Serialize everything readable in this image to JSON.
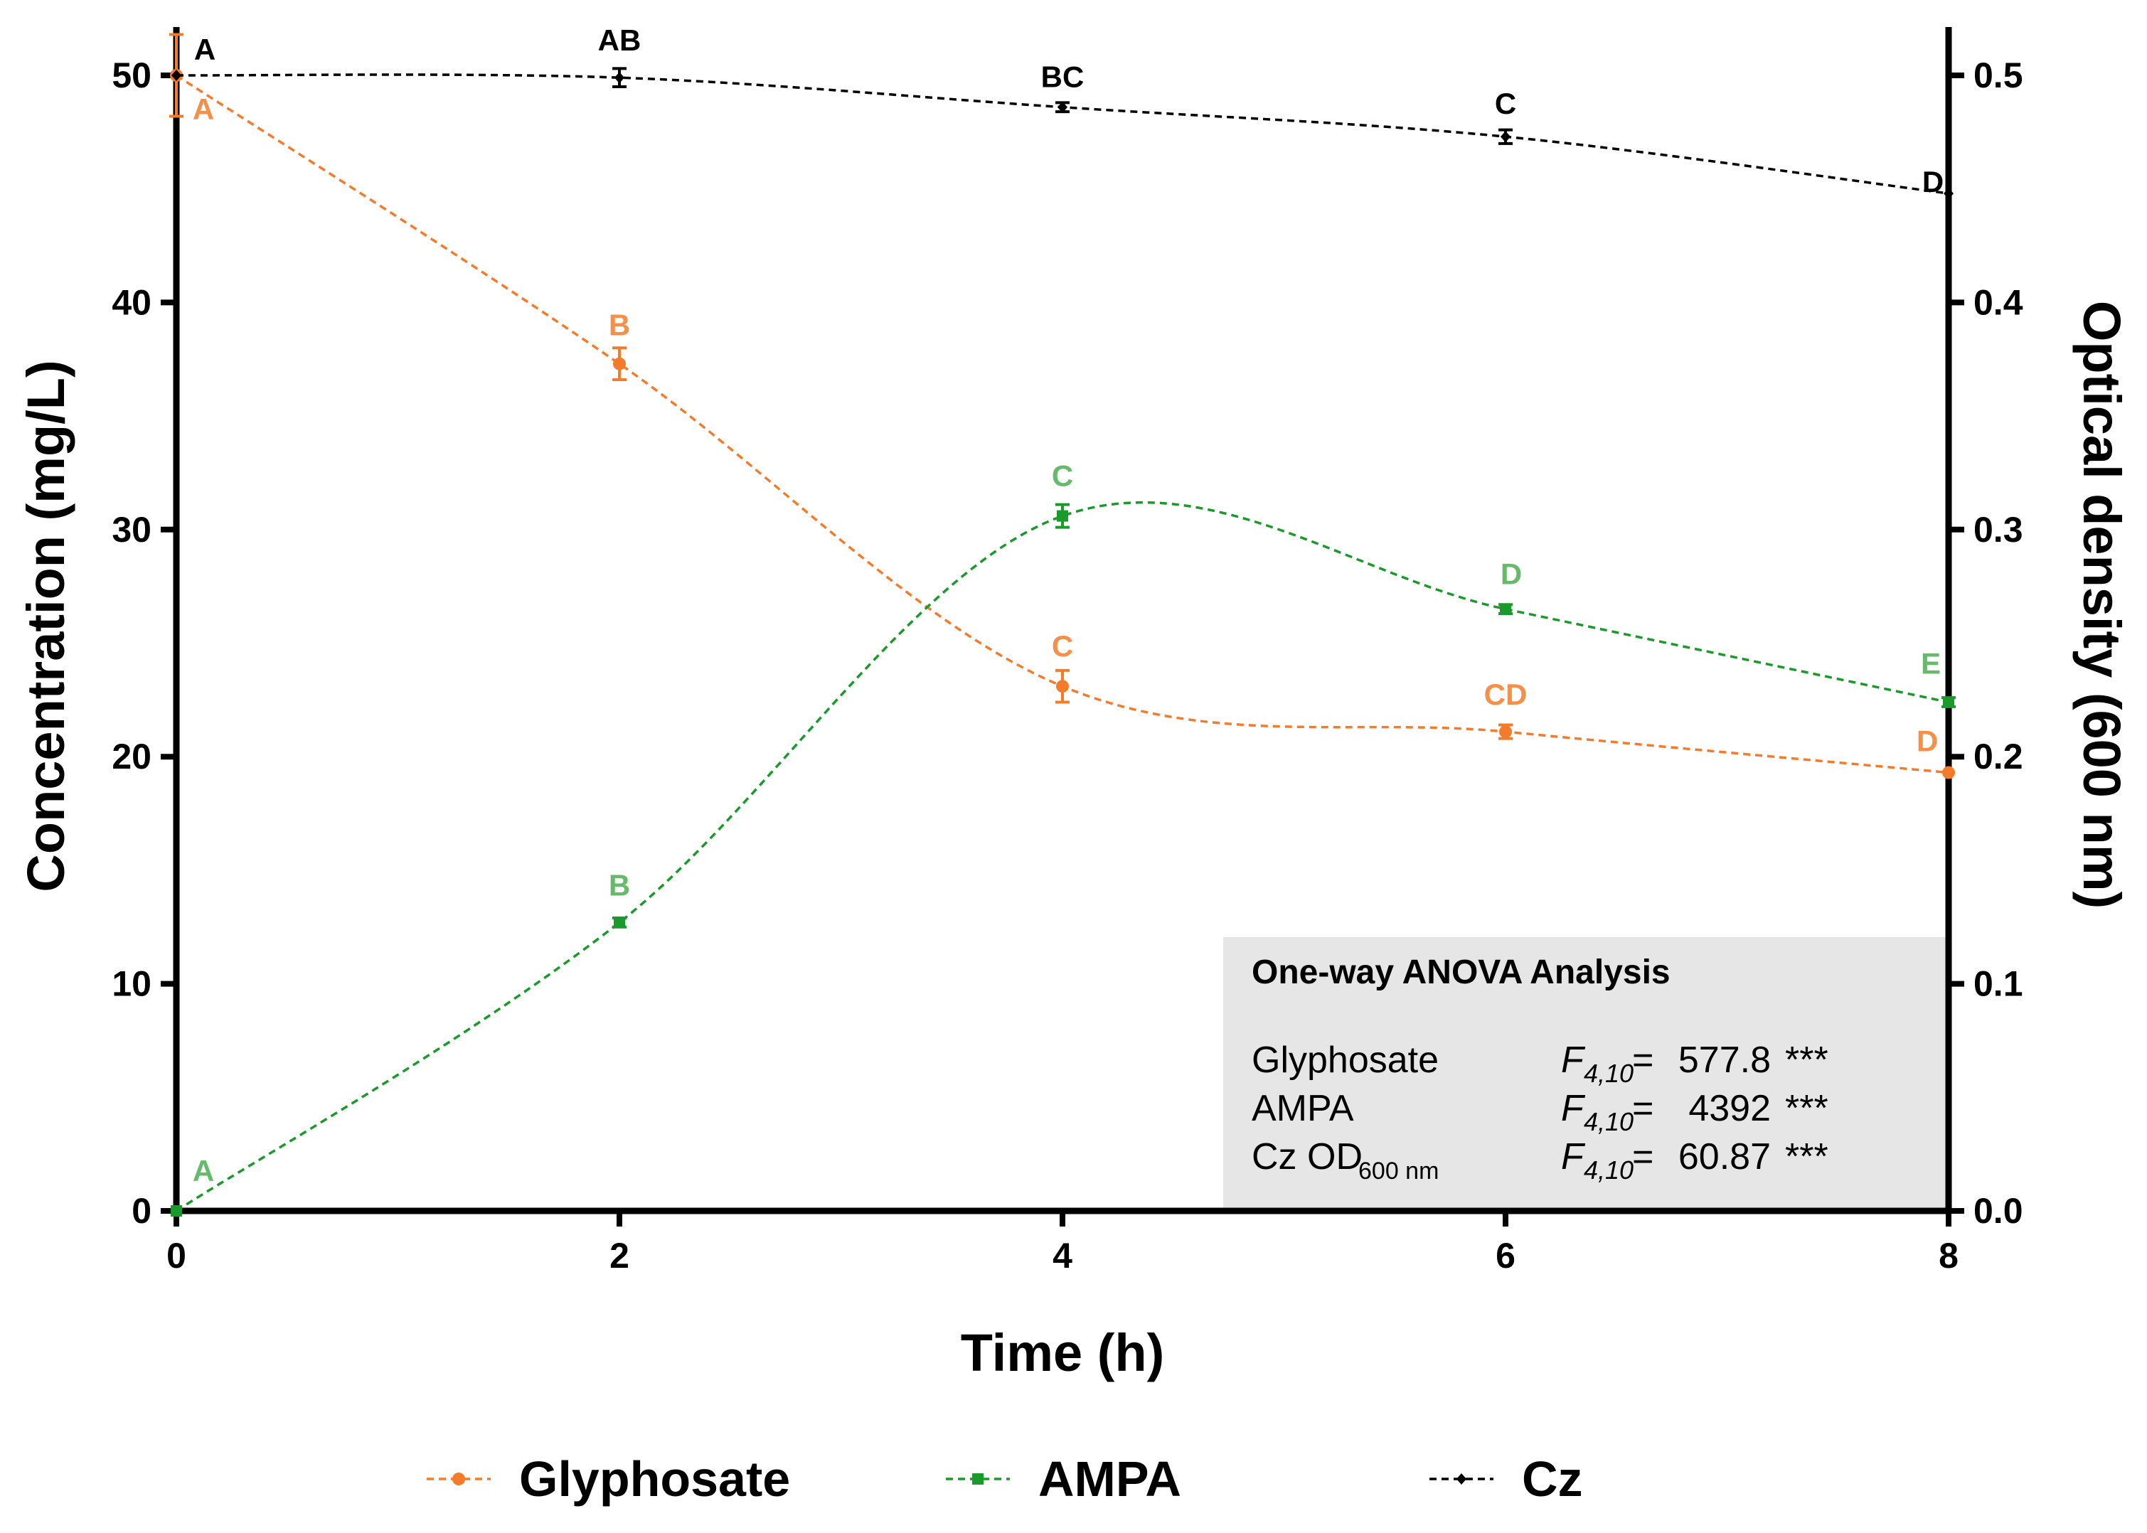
{
  "chart_data": {
    "type": "line",
    "x": [
      0,
      2,
      4,
      6,
      8
    ],
    "xlabel": "Time (h)",
    "ylabel_left": "Concentration (mg/L)",
    "ylabel_right": "Optical density (600 nm)",
    "xlim": [
      0,
      8
    ],
    "ylim_left": [
      0,
      52
    ],
    "ylim_right": [
      0,
      0.52
    ],
    "x_ticks": [
      "0",
      "2",
      "4",
      "6",
      "8"
    ],
    "y_ticks_left": [
      "0",
      "10",
      "20",
      "30",
      "40",
      "50"
    ],
    "y_ticks_right": [
      "0.0",
      "0.1",
      "0.2",
      "0.3",
      "0.4",
      "0.5"
    ],
    "series": [
      {
        "name": "Glyphosate",
        "axis": "left",
        "color": "#F47B2A",
        "label_color": "#F4904A",
        "marker": "circle",
        "values": [
          50.0,
          37.3,
          23.1,
          21.1,
          19.3
        ],
        "errors": [
          1.8,
          0.7,
          0.7,
          0.3,
          0.0
        ],
        "letters": [
          "A",
          "B",
          "C",
          "CD",
          "D"
        ]
      },
      {
        "name": "AMPA",
        "axis": "left",
        "color": "#1A9A2A",
        "label_color": "#66BB6A",
        "marker": "square",
        "values": [
          0.0,
          12.7,
          30.6,
          26.5,
          22.4
        ],
        "errors": [
          0.0,
          0.2,
          0.5,
          0.2,
          0.2
        ],
        "letters": [
          "A",
          "B",
          "C",
          "D",
          "E"
        ]
      },
      {
        "name": "Cz",
        "axis": "right",
        "color": "#000000",
        "label_color": "#000000",
        "marker": "diamond",
        "values": [
          0.5,
          0.499,
          0.486,
          0.473,
          0.448
        ],
        "errors": [
          0.0,
          0.004,
          0.002,
          0.003,
          0.0
        ],
        "letters": [
          "A",
          "AB",
          "BC",
          "C",
          "D"
        ]
      }
    ],
    "legend_position": "bottom",
    "annotation": {
      "title": "One-way ANOVA Analysis",
      "rows": [
        {
          "label": "Glyphosate",
          "label_sub": "",
          "stat": "F",
          "stat_sub": "4,10",
          "eq": "=",
          "value": "577.8",
          "sig": "***"
        },
        {
          "label": "AMPA",
          "label_sub": "",
          "stat": "F",
          "stat_sub": "4,10",
          "eq": "=",
          "value": "4392",
          "sig": "***"
        },
        {
          "label": "Cz OD",
          "label_sub": "600 nm",
          "stat": "F",
          "stat_sub": "4,10",
          "eq": "=",
          "value": "60.87",
          "sig": "***"
        }
      ]
    }
  }
}
